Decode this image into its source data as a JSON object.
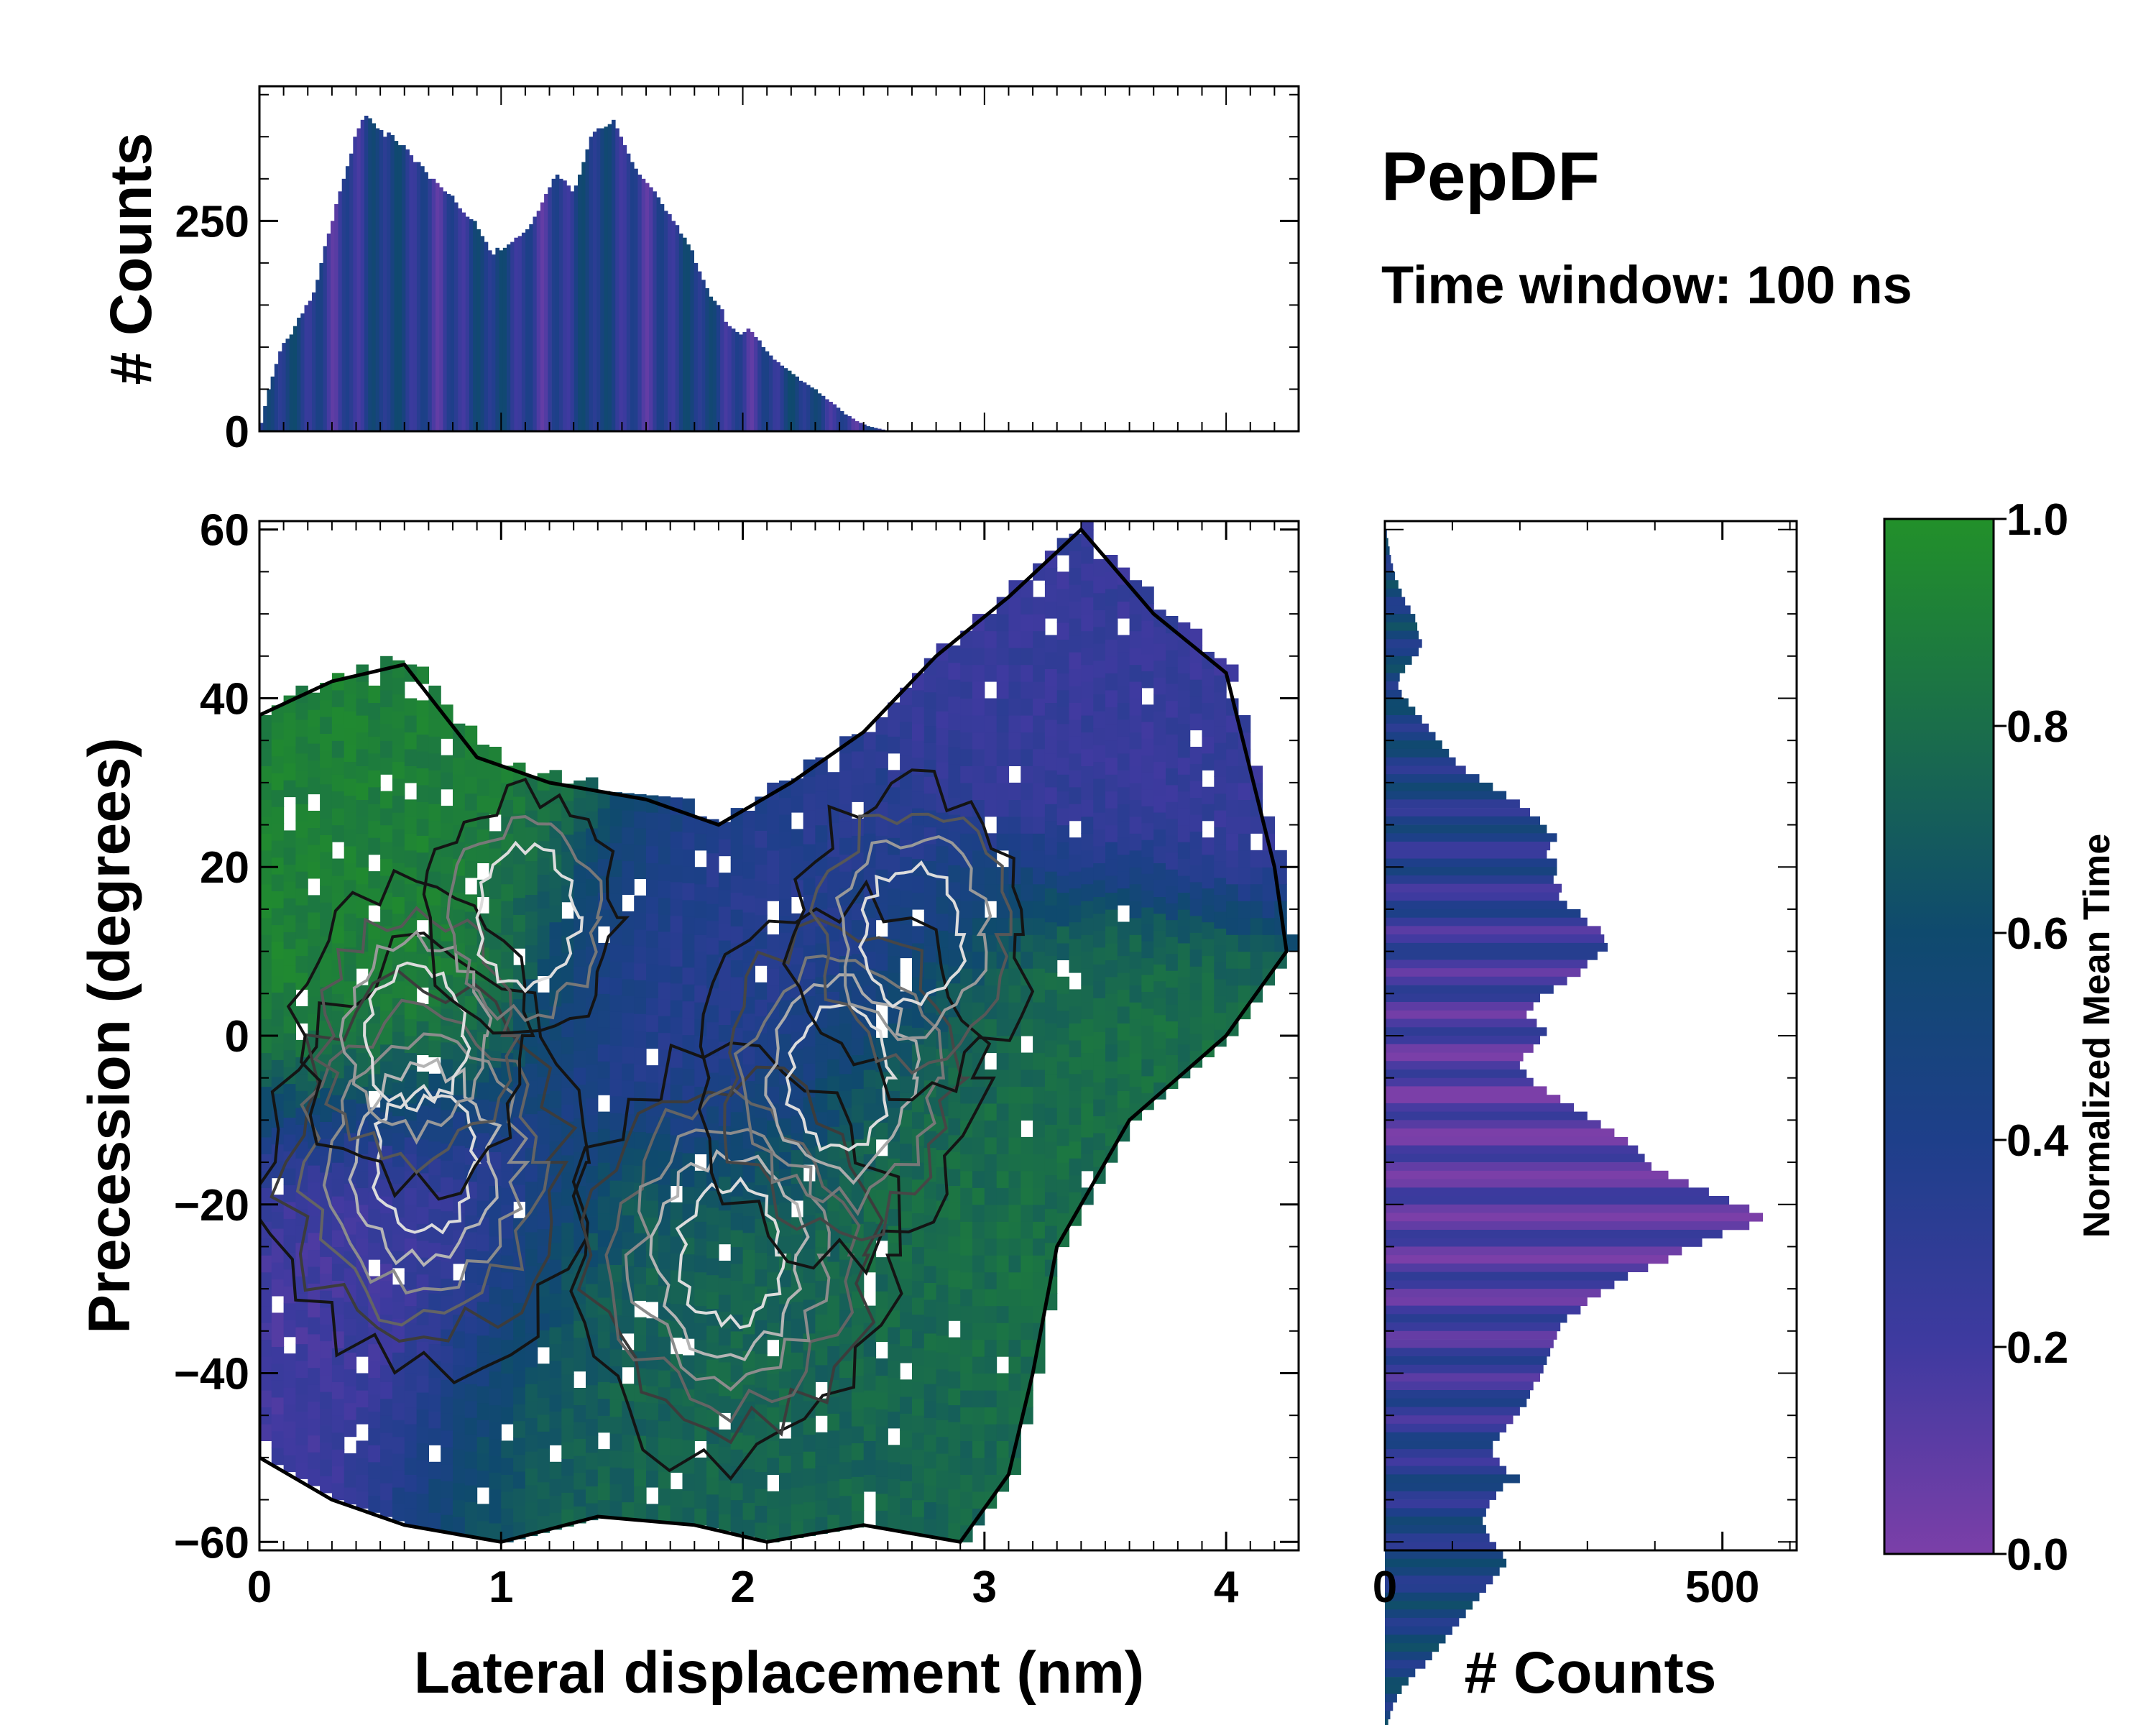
{
  "chart_data": {
    "type": "heatmap",
    "title": "PepDF",
    "subtitle": "Time window: 100 ns",
    "main": {
      "xlabel": "Lateral displacement (nm)",
      "ylabel": "Precession (degrees)",
      "xlim": [
        0,
        4.3
      ],
      "ylim": [
        -61,
        61
      ],
      "xticks": [
        0,
        1,
        2,
        3,
        4
      ],
      "yticks": [
        60,
        40,
        20,
        0,
        -20,
        -40,
        -60
      ],
      "ytick_labels": [
        "60",
        "40",
        "20",
        "0",
        "−20",
        "−40",
        "−60"
      ],
      "color_regions": [
        {
          "name": "upper-left cluster",
          "x_center": 0.6,
          "y_center": 30,
          "mean_time": 0.9
        },
        {
          "name": "left edge cluster",
          "x_center": 0.15,
          "y_center": 8,
          "mean_time": 0.92
        },
        {
          "name": "upper-right cluster",
          "x_center": 3.5,
          "y_center": 45,
          "mean_time": 0.25
        },
        {
          "name": "central band",
          "x_center": 2.0,
          "y_center": 10,
          "mean_time": 0.35
        },
        {
          "name": "lower-left cluster",
          "x_center": 0.3,
          "y_center": -28,
          "mean_time": 0.18
        },
        {
          "name": "lower central cluster",
          "x_center": 1.6,
          "y_center": -40,
          "mean_time": 0.75
        },
        {
          "name": "right middle cluster",
          "x_center": 3.1,
          "y_center": -10,
          "mean_time": 0.8
        }
      ],
      "density_peaks": [
        {
          "x": 0.68,
          "y": -15,
          "density": 1.0
        },
        {
          "x": 1.95,
          "y": -26,
          "density": 0.9
        },
        {
          "x": 2.4,
          "y": -5,
          "density": 0.85
        },
        {
          "x": 2.7,
          "y": 12,
          "density": 0.6
        },
        {
          "x": 0.65,
          "y": 0,
          "density": 0.55
        },
        {
          "x": 1.1,
          "y": 14,
          "density": 0.45
        }
      ]
    },
    "top_histogram": {
      "ylabel": "# Counts",
      "ylim": [
        0,
        410
      ],
      "yticks": [
        0,
        250
      ],
      "x_start": 0,
      "bin_width": 0.0155,
      "values": [
        10,
        30,
        50,
        65,
        80,
        95,
        105,
        110,
        115,
        125,
        135,
        140,
        150,
        155,
        165,
        180,
        200,
        220,
        235,
        250,
        270,
        285,
        300,
        315,
        330,
        350,
        360,
        370,
        375,
        372,
        366,
        360,
        358,
        350,
        355,
        352,
        345,
        340,
        340,
        335,
        328,
        320,
        320,
        315,
        308,
        300,
        300,
        295,
        290,
        285,
        282,
        280,
        272,
        265,
        260,
        255,
        252,
        250,
        240,
        232,
        225,
        215,
        210,
        218,
        215,
        218,
        222,
        225,
        230,
        232,
        236,
        240,
        246,
        255,
        262,
        272,
        282,
        290,
        300,
        305,
        300,
        298,
        292,
        285,
        292,
        305,
        320,
        335,
        350,
        356,
        360,
        360,
        362,
        365,
        370,
        360,
        350,
        340,
        330,
        320,
        312,
        305,
        300,
        295,
        290,
        285,
        278,
        270,
        262,
        258,
        250,
        245,
        235,
        230,
        222,
        215,
        200,
        190,
        180,
        170,
        160,
        155,
        150,
        145,
        130,
        125,
        122,
        118,
        115,
        118,
        122,
        118,
        112,
        108,
        100,
        95,
        90,
        85,
        82,
        78,
        75,
        72,
        68,
        65,
        60,
        58,
        55,
        52,
        50,
        45,
        42,
        38,
        35,
        32,
        28,
        24,
        20,
        18,
        15,
        12,
        10,
        8,
        6,
        5,
        4,
        3,
        2,
        1
      ]
    },
    "right_histogram": {
      "xlabel": "# Counts",
      "xlim": [
        0,
        610
      ],
      "xticks": [
        0,
        500
      ],
      "y_start": 60,
      "bin_width": -1,
      "values": [
        3,
        5,
        7,
        9,
        12,
        15,
        20,
        25,
        30,
        38,
        45,
        48,
        50,
        55,
        50,
        40,
        30,
        22,
        20,
        25,
        35,
        45,
        55,
        65,
        75,
        85,
        95,
        105,
        120,
        140,
        160,
        180,
        200,
        215,
        230,
        240,
        255,
        245,
        240,
        255,
        255,
        250,
        262,
        258,
        270,
        290,
        300,
        320,
        325,
        330,
        315,
        300,
        290,
        270,
        250,
        230,
        220,
        210,
        225,
        240,
        230,
        220,
        205,
        200,
        210,
        220,
        240,
        260,
        280,
        300,
        320,
        340,
        360,
        375,
        385,
        395,
        420,
        450,
        480,
        510,
        540,
        560,
        540,
        500,
        470,
        440,
        420,
        390,
        360,
        340,
        320,
        300,
        290,
        270,
        260,
        255,
        250,
        245,
        240,
        235,
        230,
        220,
        215,
        210,
        200,
        190,
        180,
        170,
        160,
        160,
        170,
        180,
        200,
        175,
        165,
        155,
        150,
        145,
        150,
        155,
        165,
        175,
        180,
        170,
        160,
        150,
        140,
        130,
        120,
        110,
        100,
        90,
        80,
        70,
        60,
        45,
        35,
        25,
        18,
        12,
        8,
        5,
        3
      ]
    },
    "colorbar": {
      "label": "Normalized Mean Time",
      "ticks": [
        0.0,
        0.2,
        0.4,
        0.6,
        0.8,
        1.0
      ],
      "tick_labels": [
        "0.0",
        "0.2",
        "0.4",
        "0.6",
        "0.8",
        "1.0"
      ],
      "colormap": [
        "#7b3fa8",
        "#3f3aa0",
        "#1e3f8a",
        "#0f4a6e",
        "#1a6e4a",
        "#22902a"
      ]
    }
  }
}
